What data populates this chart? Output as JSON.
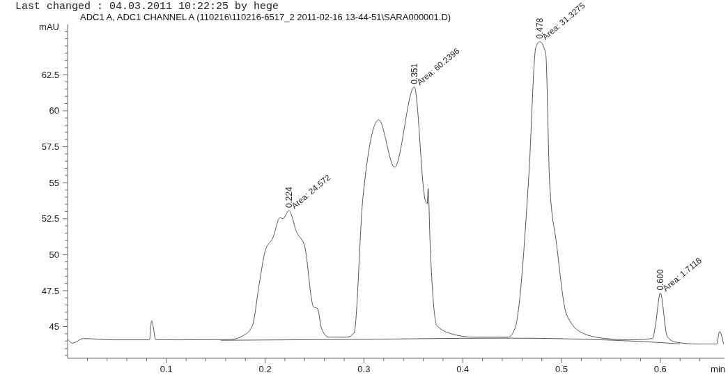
{
  "chart_data": {
    "type": "line",
    "title": "ADC1 A, ADC1 CHANNEL A (110216\\110216-6517_2 2011-02-16 13-44-51\\SARA000001.D)",
    "xlabel": "min",
    "ylabel": "mAU",
    "xlim": [
      0,
      0.665
    ],
    "ylim": [
      42.8,
      66
    ],
    "grid": false,
    "marker": "none",
    "line_style": "solid",
    "xticks": [
      {
        "value": 0.02,
        "label": null
      },
      {
        "value": 0.04,
        "label": null
      },
      {
        "value": 0.06,
        "label": null
      },
      {
        "value": 0.08,
        "label": null
      },
      0.1,
      {
        "value": 0.12,
        "label": null
      },
      {
        "value": 0.14,
        "label": null
      },
      {
        "value": 0.16,
        "label": null
      },
      {
        "value": 0.18,
        "label": null
      },
      0.2,
      {
        "value": 0.22,
        "label": null
      },
      {
        "value": 0.24,
        "label": null
      },
      {
        "value": 0.26,
        "label": null
      },
      {
        "value": 0.28,
        "label": null
      },
      0.3,
      {
        "value": 0.32,
        "label": null
      },
      {
        "value": 0.34,
        "label": null
      },
      {
        "value": 0.36,
        "label": null
      },
      {
        "value": 0.38,
        "label": null
      },
      0.4,
      {
        "value": 0.42,
        "label": null
      },
      {
        "value": 0.44,
        "label": null
      },
      {
        "value": 0.46,
        "label": null
      },
      {
        "value": 0.48,
        "label": null
      },
      0.5,
      {
        "value": 0.52,
        "label": null
      },
      {
        "value": 0.54,
        "label": null
      },
      {
        "value": 0.56,
        "label": null
      },
      {
        "value": 0.58,
        "label": null
      },
      0.6,
      {
        "value": 0.62,
        "label": null
      },
      {
        "value": 0.64,
        "label": null
      }
    ],
    "yticks": [
      {
        "value": 43,
        "label": null
      },
      {
        "value": 43.5,
        "label": null
      },
      {
        "value": 44,
        "label": null
      },
      {
        "value": 44.5,
        "label": null
      },
      45,
      {
        "value": 45.5,
        "label": null
      },
      {
        "value": 46,
        "label": null
      },
      {
        "value": 46.5,
        "label": null
      },
      {
        "value": 47,
        "label": null
      },
      47.5,
      {
        "value": 48,
        "label": null
      },
      {
        "value": 48.5,
        "label": null
      },
      {
        "value": 49,
        "label": null
      },
      {
        "value": 49.5,
        "label": null
      },
      50,
      {
        "value": 50.5,
        "label": null
      },
      {
        "value": 51,
        "label": null
      },
      {
        "value": 51.5,
        "label": null
      },
      {
        "value": 52,
        "label": null
      },
      52.5,
      {
        "value": 53,
        "label": null
      },
      {
        "value": 53.5,
        "label": null
      },
      {
        "value": 54,
        "label": null
      },
      {
        "value": 54.5,
        "label": null
      },
      55,
      {
        "value": 55.5,
        "label": null
      },
      {
        "value": 56,
        "label": null
      },
      {
        "value": 56.5,
        "label": null
      },
      {
        "value": 57,
        "label": null
      },
      57.5,
      {
        "value": 58,
        "label": null
      },
      {
        "value": 58.5,
        "label": null
      },
      {
        "value": 59,
        "label": null
      },
      {
        "value": 59.5,
        "label": null
      },
      60,
      {
        "value": 60.5,
        "label": null
      },
      {
        "value": 61,
        "label": null
      },
      {
        "value": 61.5,
        "label": null
      },
      {
        "value": 62,
        "label": null
      },
      62.5,
      {
        "value": 63,
        "label": null
      },
      {
        "value": 63.5,
        "label": null
      },
      {
        "value": 64,
        "label": null
      },
      {
        "value": 64.5,
        "label": null
      },
      {
        "value": 65,
        "label": null
      },
      {
        "value": 65.5,
        "label": null
      }
    ],
    "series": [
      {
        "color": "#555555",
        "x": [
          0,
          0.005,
          0.016,
          0.045,
          0.082,
          0.083,
          0.085,
          0.087,
          0.089,
          0.108,
          0.164,
          0.178,
          0.187,
          0.194,
          0.2,
          0.208,
          0.215,
          0.218,
          0.224,
          0.232,
          0.24,
          0.249,
          0.253,
          0.257,
          0.264,
          0.283,
          0.29,
          0.299,
          0.315,
          0.331,
          0.351,
          0.362,
          0.364,
          0.365,
          0.367,
          0.374,
          0.393,
          0.411,
          0.446,
          0.453,
          0.467,
          0.474,
          0.478,
          0.484,
          0.488,
          0.495,
          0.505,
          0.521,
          0.545,
          0.568,
          0.592,
          0.595,
          0.6,
          0.607,
          0.615,
          0.638,
          0.657,
          0.66,
          0.664
        ],
        "values": [
          44.13,
          43.85,
          44.17,
          44.08,
          44.08,
          44.1,
          45.4,
          44.9,
          44.1,
          44.08,
          44.1,
          44.38,
          45.05,
          47.96,
          50.24,
          51.2,
          52.57,
          52.5,
          53.06,
          51.55,
          50.58,
          46.36,
          46.26,
          44.9,
          44.27,
          44.27,
          44.56,
          53.98,
          59.37,
          56.07,
          61.65,
          53.79,
          53.54,
          54.6,
          50.73,
          45.05,
          44.42,
          44.27,
          44.27,
          44.9,
          55.58,
          64.4,
          64.8,
          63.98,
          54.95,
          50.73,
          45.87,
          44.56,
          44.17,
          44.08,
          44.17,
          45.05,
          47.33,
          44.32,
          43.93,
          43.79,
          43.79,
          44.66,
          43.79
        ]
      },
      {
        "color": "#555555",
        "x": [
          0.155,
          0.27,
          0.445,
          0.585,
          0.62
        ],
        "values": [
          44.05,
          44.1,
          44.2,
          43.95,
          43.8
        ]
      }
    ],
    "annotations": [
      "Last changed    : 04.03.2011 10:22:25  by hege",
      {
        "text": "0.224",
        "x": 0.224,
        "y": 53.06
      },
      {
        "text": "Area: 24.572",
        "x": 0.224,
        "y": 53.06
      },
      {
        "text": "0.351",
        "x": 0.351,
        "y": 61.65
      },
      {
        "text": "Area: 60.2396",
        "x": 0.351,
        "y": 61.65
      },
      {
        "text": "0.478",
        "x": 0.478,
        "y": 64.8
      },
      {
        "text": "Area: 31.3275",
        "x": 0.478,
        "y": 64.8
      },
      {
        "text": "0.600",
        "x": 0.6,
        "y": 47.33
      },
      {
        "text": "Area: 1.7118",
        "x": 0.6,
        "y": 47.33
      }
    ]
  }
}
